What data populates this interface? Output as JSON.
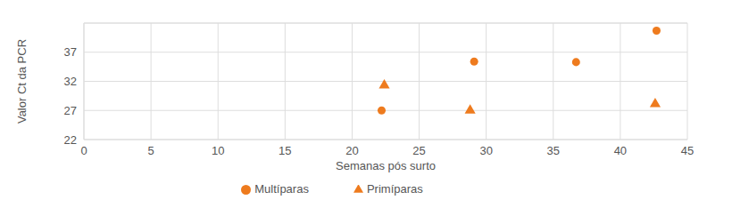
{
  "chart_data": {
    "type": "scatter",
    "x_label": "Semanas pós surto",
    "y_label": "Valor Ct da PCR",
    "xlim": [
      0,
      45
    ],
    "xticks": [
      0,
      5,
      10,
      15,
      20,
      25,
      30,
      35,
      40,
      45
    ],
    "ylim": [
      22,
      42
    ],
    "yticks": [
      22,
      27,
      32,
      37
    ],
    "grid": true,
    "legend": "bottom",
    "series": [
      {
        "name": "Multíparas",
        "color": "#ee7b1e",
        "marker": "circle",
        "x": [
          22.2,
          29.1,
          36.7,
          42.7
        ],
        "values": [
          27.0,
          35.4,
          35.3,
          40.7
        ]
      },
      {
        "name": "Primíparas",
        "color": "#ee7b1e",
        "marker": "triangle",
        "x": [
          22.4,
          28.8,
          42.6
        ],
        "values": [
          31.3,
          27.0,
          28.1
        ]
      }
    ]
  }
}
